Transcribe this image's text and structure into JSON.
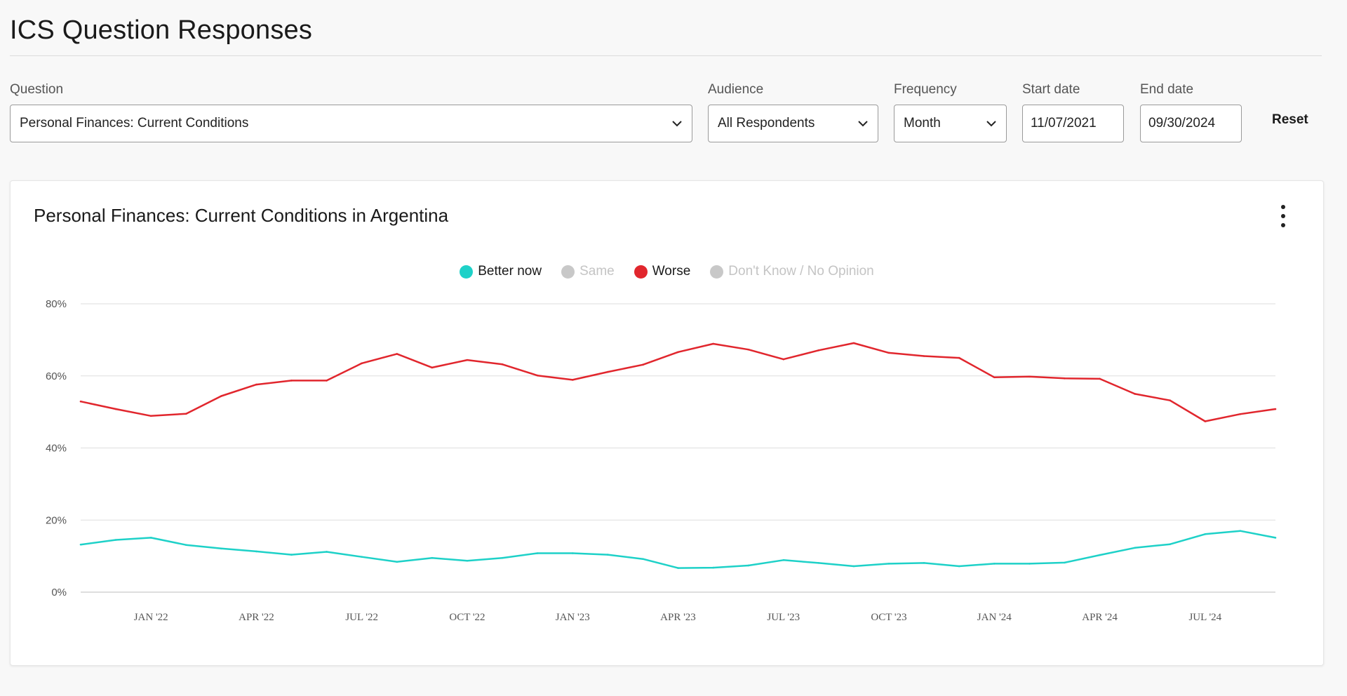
{
  "page": {
    "title": "ICS Question Responses"
  },
  "filters": {
    "question": {
      "label": "Question",
      "value": "Personal Finances: Current Conditions"
    },
    "audience": {
      "label": "Audience",
      "value": "All Respondents"
    },
    "frequency": {
      "label": "Frequency",
      "value": "Month"
    },
    "start_date": {
      "label": "Start date",
      "value": "11/07/2021"
    },
    "end_date": {
      "label": "End date",
      "value": "09/30/2024"
    },
    "reset_label": "Reset"
  },
  "card": {
    "title": "Personal Finances: Current Conditions in Argentina",
    "menu_icon": "kebab-menu-icon"
  },
  "legend": [
    {
      "name": "Better now",
      "color": "#1ed1c8",
      "active": true
    },
    {
      "name": "Same",
      "color": "#c8c8c8",
      "active": false
    },
    {
      "name": "Worse",
      "color": "#e1262d",
      "active": true
    },
    {
      "name": "Don't Know / No Opinion",
      "color": "#c8c8c8",
      "active": false
    }
  ],
  "chart_data": {
    "type": "line",
    "x": [
      "Nov '21",
      "Dec '21",
      "Jan '22",
      "Feb '22",
      "Mar '22",
      "Apr '22",
      "May '22",
      "Jun '22",
      "Jul '22",
      "Aug '22",
      "Sep '22",
      "Oct '22",
      "Nov '22",
      "Dec '22",
      "Jan '23",
      "Feb '23",
      "Mar '23",
      "Apr '23",
      "May '23",
      "Jun '23",
      "Jul '23",
      "Aug '23",
      "Sep '23",
      "Oct '23",
      "Nov '23",
      "Dec '23",
      "Jan '24",
      "Feb '24",
      "Mar '24",
      "Apr '24",
      "May '24",
      "Jun '24",
      "Jul '24",
      "Aug '24",
      "Sep '24"
    ],
    "x_tick_labels": [
      "JAN '22",
      "APR '22",
      "JUL '22",
      "OCT '22",
      "JAN '23",
      "APR '23",
      "JUL '23",
      "OCT '23",
      "JAN '24",
      "APR '24",
      "JUL '24"
    ],
    "x_tick_index": [
      2,
      5,
      8,
      11,
      14,
      17,
      20,
      23,
      26,
      29,
      32
    ],
    "y_ticks": [
      "0%",
      "20%",
      "40%",
      "60%",
      "80%"
    ],
    "ylim": [
      0,
      80
    ],
    "grid": true,
    "legend_position": "top-center",
    "series": [
      {
        "name": "Better now",
        "color": "#1ed1c8",
        "values": [
          13.2,
          14.5,
          15.1,
          13.1,
          12.1,
          11.3,
          10.4,
          11.2,
          9.8,
          8.4,
          9.5,
          8.7,
          9.5,
          10.8,
          10.8,
          10.4,
          9.2,
          6.7,
          6.8,
          7.4,
          8.9,
          8.1,
          7.2,
          7.9,
          8.1,
          7.2,
          7.9,
          7.9,
          8.2,
          10.3,
          12.3,
          13.3,
          16.1,
          17.0,
          15.1
        ]
      },
      {
        "name": "Worse",
        "color": "#e1262d",
        "values": [
          52.9,
          50.8,
          48.9,
          49.5,
          54.4,
          57.6,
          58.7,
          58.7,
          63.5,
          66.1,
          62.3,
          64.4,
          63.2,
          60.1,
          58.9,
          61.1,
          63.1,
          66.6,
          68.9,
          67.3,
          64.6,
          67.1,
          69.1,
          66.4,
          65.5,
          65.0,
          59.6,
          59.8,
          59.3,
          59.2,
          55.0,
          53.2,
          47.4,
          49.4,
          50.8
        ]
      }
    ]
  }
}
